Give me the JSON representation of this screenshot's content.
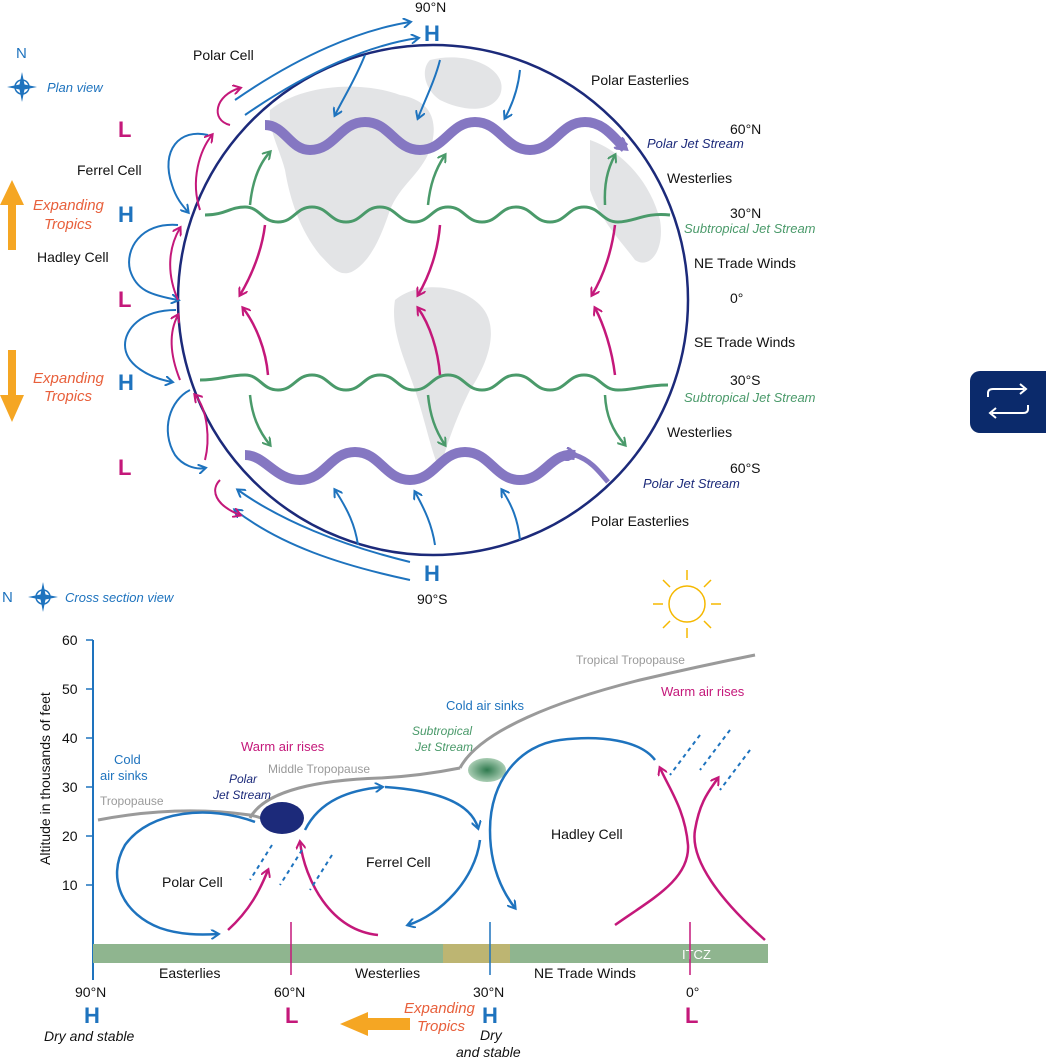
{
  "colors": {
    "blue": "#1e73be",
    "magenta": "#c4187a",
    "green": "#4a9a6a",
    "purple": "#8577c2",
    "navy": "#1c2a7a",
    "orange": "#f5a623",
    "orange_text": "#e8603c",
    "gray": "#9a9a9a",
    "ground": "#8fb58f",
    "land": "#e3e4e6"
  },
  "plan": {
    "view_label": "Plan view",
    "compass_letter": "N",
    "polar_cell": "Polar Cell",
    "ferrel_cell": "Ferrel Cell",
    "hadley_cell": "Hadley Cell",
    "expanding_tropics": [
      "Expanding",
      "Tropics"
    ],
    "lat_90n": "90°N",
    "lat_60n": "60°N",
    "lat_30n": "30°N",
    "lat_0": "0°",
    "lat_30s": "30°S",
    "lat_60s": "60°S",
    "lat_90s": "90°S",
    "polar_easterlies": "Polar Easterlies",
    "westerlies": "Westerlies",
    "ne_trade": "NE Trade Winds",
    "se_trade": "SE Trade Winds",
    "polar_jet": "Polar Jet Stream",
    "subtropical_jet": "Subtropical Jet Stream",
    "H": "H",
    "L": "L"
  },
  "cross": {
    "view_label": "Cross section view",
    "compass_letter": "N",
    "y_axis_label": "Altitude in thousands of feet",
    "y_ticks": [
      "60",
      "50",
      "40",
      "30",
      "20",
      "10"
    ],
    "tropopause": "Tropopause",
    "middle_tropopause": "Middle Tropopause",
    "tropical_tropopause": "Tropical Tropopause",
    "cold_air_sinks_left": [
      "Cold",
      "air sinks"
    ],
    "cold_air_sinks_mid": "Cold air sinks",
    "warm_air_rises_left": "Warm air rises",
    "warm_air_rises_right": "Warm air rises",
    "polar_jet": [
      "Polar",
      "Jet Stream"
    ],
    "subtropical_jet": [
      "Subtropical",
      "Jet Stream"
    ],
    "polar_cell": "Polar Cell",
    "ferrel_cell": "Ferrel Cell",
    "hadley_cell": "Hadley Cell",
    "itcz": "ITCZ",
    "easterlies": "Easterlies",
    "westerlies": "Westerlies",
    "ne_trade": "NE Trade Winds",
    "lat_90n": "90°N",
    "lat_60n": "60°N",
    "lat_30n": "30°N",
    "lat_0": "0°",
    "H": "H",
    "L": "L",
    "dry_stable_1": "Dry and stable",
    "dry_stable_2": [
      "Dry",
      "and stable"
    ],
    "expanding_tropics": [
      "Expanding",
      "Tropics"
    ]
  },
  "toolbar": {
    "swap_icon": "swap-arrows-icon"
  }
}
